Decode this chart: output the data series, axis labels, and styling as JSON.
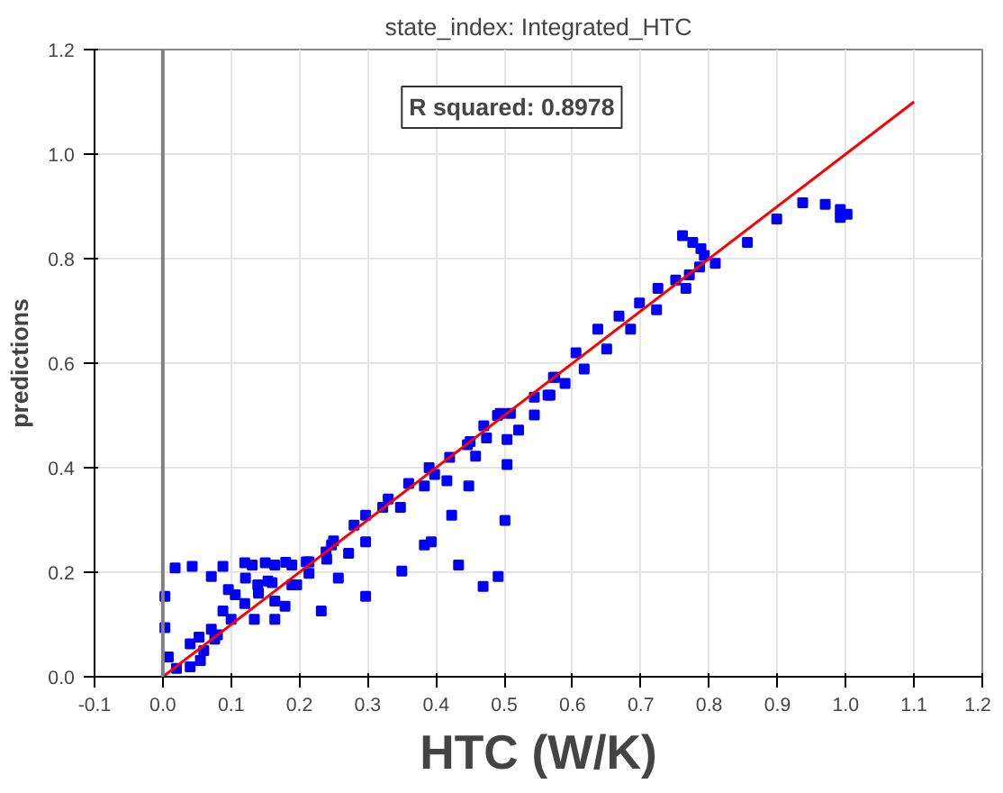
{
  "chart_data": {
    "type": "scatter",
    "title": "state_index: Integrated_HTC",
    "xlabel": "HTC (W/K)",
    "ylabel": "predictions",
    "annotations": [
      "R squared: 0.8978"
    ],
    "series": [
      {
        "color": "#0000ff",
        "marker": "square",
        "x": [
          0.937,
          0.97,
          0.992,
          0.992,
          1.002,
          0.899,
          0.856,
          0.809,
          0.761,
          0.776,
          0.788,
          0.793,
          0.786,
          0.771,
          0.751,
          0.766,
          0.725,
          0.698,
          0.723,
          0.668,
          0.685,
          0.637,
          0.65,
          0.605,
          0.617,
          0.574,
          0.589,
          0.567,
          0.572,
          0.544,
          0.564,
          0.509,
          0.494,
          0.544,
          0.521,
          0.504,
          0.504,
          0.501,
          0.491,
          0.469,
          0.433,
          0.423,
          0.448,
          0.458,
          0.474,
          0.446,
          0.416,
          0.398,
          0.383,
          0.393,
          0.383,
          0.35,
          0.348,
          0.322,
          0.297,
          0.297,
          0.297,
          0.272,
          0.247,
          0.232,
          0.214,
          0.257,
          0.189,
          0.164,
          0.131,
          0.088,
          0.043,
          0.018,
          0.003,
          0.003,
          0.008,
          0.02,
          0.04,
          0.055,
          0.04,
          0.053,
          0.076,
          0.071,
          0.088,
          0.106,
          0.134,
          0.164,
          0.179,
          0.071,
          0.096,
          0.121,
          0.139,
          0.154,
          0.164,
          0.196,
          0.214,
          0.239,
          0.189,
          0.25,
          0.28,
          0.33,
          0.36,
          0.39,
          0.42,
          0.45,
          0.47,
          0.49,
          0.12,
          0.15,
          0.18,
          0.21,
          0.24,
          0.06,
          0.08,
          0.1,
          0.12,
          0.14,
          0.16
        ],
        "values": [
          0.907,
          0.904,
          0.894,
          0.879,
          0.885,
          0.876,
          0.831,
          0.791,
          0.844,
          0.831,
          0.819,
          0.806,
          0.784,
          0.769,
          0.759,
          0.743,
          0.743,
          0.715,
          0.702,
          0.69,
          0.665,
          0.665,
          0.627,
          0.62,
          0.589,
          0.573,
          0.561,
          0.539,
          0.573,
          0.535,
          0.539,
          0.504,
          0.504,
          0.501,
          0.472,
          0.454,
          0.406,
          0.299,
          0.192,
          0.173,
          0.214,
          0.309,
          0.365,
          0.422,
          0.457,
          0.444,
          0.375,
          0.387,
          0.365,
          0.258,
          0.252,
          0.202,
          0.324,
          0.324,
          0.309,
          0.258,
          0.154,
          0.236,
          0.252,
          0.126,
          0.198,
          0.189,
          0.176,
          0.214,
          0.214,
          0.211,
          0.211,
          0.208,
          0.154,
          0.094,
          0.038,
          0.016,
          0.019,
          0.031,
          0.063,
          0.076,
          0.072,
          0.091,
          0.126,
          0.157,
          0.11,
          0.11,
          0.135,
          0.192,
          0.167,
          0.189,
          0.176,
          0.183,
          0.145,
          0.176,
          0.22,
          0.239,
          0.214,
          0.26,
          0.29,
          0.34,
          0.37,
          0.4,
          0.42,
          0.45,
          0.48,
          0.5,
          0.218,
          0.218,
          0.219,
          0.22,
          0.225,
          0.05,
          0.08,
          0.11,
          0.14,
          0.16,
          0.18
        ]
      },
      {
        "type": "line",
        "color": "#ff0000",
        "x": [
          0,
          1.1
        ],
        "values": [
          0,
          1.1
        ]
      }
    ],
    "ref_lines": [
      {
        "axis": "x",
        "value": 0,
        "color": "#808080"
      }
    ],
    "xlim": [
      -0.1,
      1.2
    ],
    "ylim": [
      0,
      1.2
    ],
    "xticks": [
      -0.1,
      {
        "value": 0,
        "label": "0.0"
      },
      0.1,
      0.2,
      0.3,
      0.4,
      0.5,
      0.6,
      0.7,
      0.8,
      0.9,
      {
        "value": 1,
        "label": "1.0"
      },
      1.1,
      1.2
    ],
    "yticks": [
      {
        "value": 0,
        "label": "0.0"
      },
      0.2,
      0.4,
      0.6,
      0.8,
      {
        "value": 1,
        "label": "1.0"
      },
      1.2
    ],
    "grid": true
  }
}
